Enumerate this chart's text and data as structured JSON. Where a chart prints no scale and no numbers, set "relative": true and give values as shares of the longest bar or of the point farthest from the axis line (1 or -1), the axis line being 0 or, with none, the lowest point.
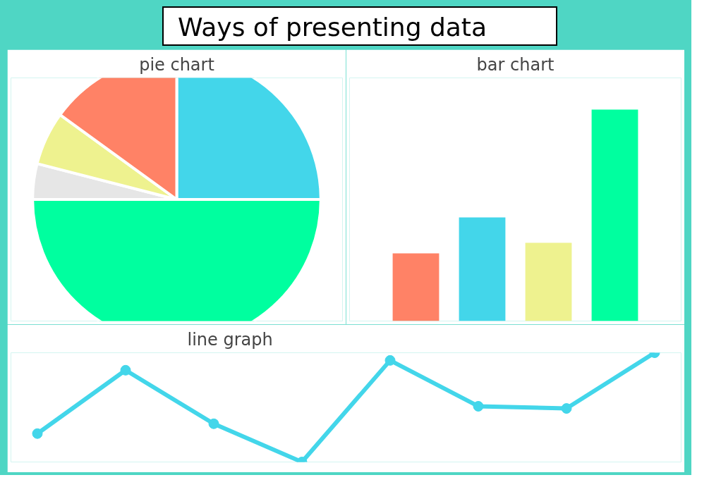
{
  "chart_data": [
    {
      "type": "other",
      "title": "Ways of presenting data"
    },
    {
      "type": "pie",
      "title": "pie chart",
      "categories": [
        null,
        null,
        null,
        null,
        null
      ],
      "values": [
        25,
        50,
        4,
        6,
        15
      ],
      "colors": [
        "#43d6ea",
        "#00ff9f",
        "#e6e6e6",
        "#eef28f",
        "#ff8266"
      ]
    },
    {
      "type": "bar",
      "title": "bar chart",
      "relative": true,
      "categories": [
        null,
        null,
        null,
        null
      ],
      "values": [
        0.32,
        0.49,
        0.37,
        1
      ],
      "colors": [
        "#ff8266",
        "#43d6ea",
        "#eef28f",
        "#00ff9f"
      ]
    },
    {
      "type": "line",
      "title": "line graph",
      "relative": true,
      "marker": "circle",
      "categories": [
        null,
        null,
        null,
        null,
        null,
        null,
        null,
        null
      ],
      "values": [
        0.26,
        0.84,
        0.35,
        0,
        0.93,
        0.51,
        0.49,
        1
      ],
      "color": "#43d6ea"
    }
  ]
}
